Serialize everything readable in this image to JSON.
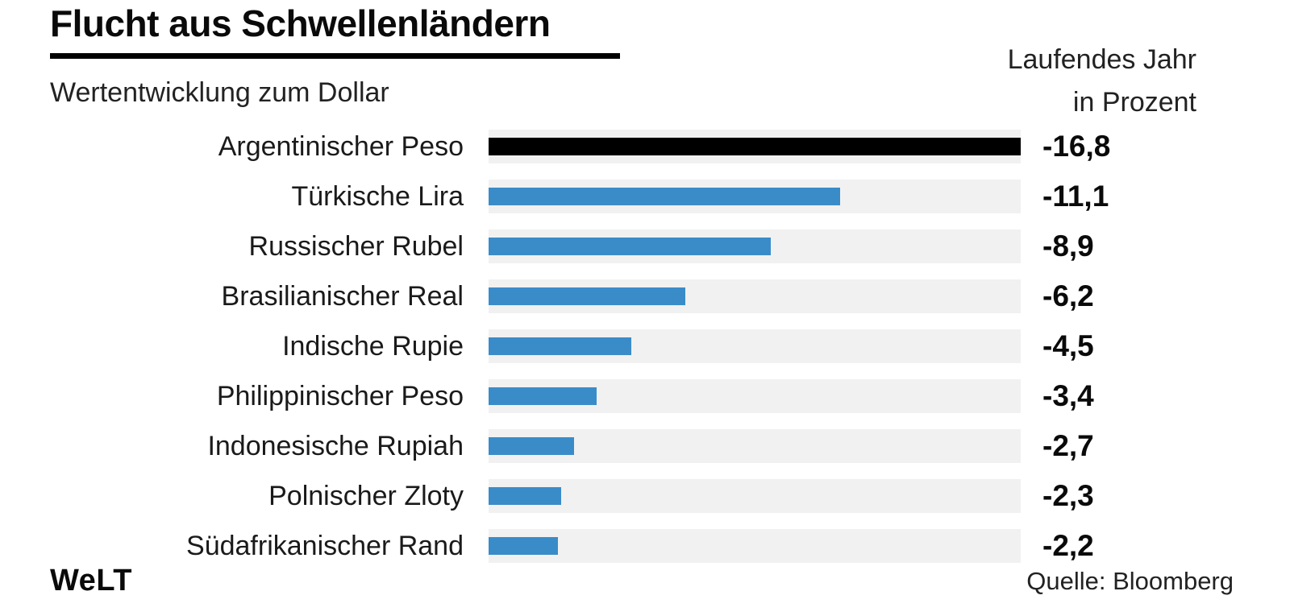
{
  "header": {
    "title": "Flucht aus Schwellenländern",
    "subtitle": "Wertentwicklung zum Dollar",
    "value_header_line1": "Laufendes Jahr",
    "value_header_line2": "in Prozent"
  },
  "footer": {
    "logo_text": "WeLT",
    "source": "Quelle: Bloomberg"
  },
  "colors": {
    "bar_highlight": "#000000",
    "bar": "#3a8cc9",
    "track": "#f1f1f1"
  },
  "chart_data": {
    "type": "bar",
    "orientation": "horizontal",
    "title": "Flucht aus Schwellenländern",
    "subtitle": "Wertentwicklung zum Dollar",
    "unit": "Laufendes Jahr in Prozent",
    "categories": [
      "Argentinischer Peso",
      "Türkische Lira",
      "Russischer Rubel",
      "Brasilianischer Real",
      "Indische Rupie",
      "Philippinischer Peso",
      "Indonesische Rupiah",
      "Polnischer Zloty",
      "Südafrikanischer Rand"
    ],
    "values": [
      -16.8,
      -11.1,
      -8.9,
      -6.2,
      -4.5,
      -3.4,
      -2.7,
      -2.3,
      -2.2
    ],
    "value_labels": [
      "-16,8",
      "-11,1",
      "-8,9",
      "-6,2",
      "-4,5",
      "-3,4",
      "-2,7",
      "-2,3",
      "-2,2"
    ],
    "xlim": [
      0,
      16.8
    ],
    "highlight_index": 0,
    "grid": false,
    "legend": false,
    "source": "Quelle: Bloomberg"
  }
}
